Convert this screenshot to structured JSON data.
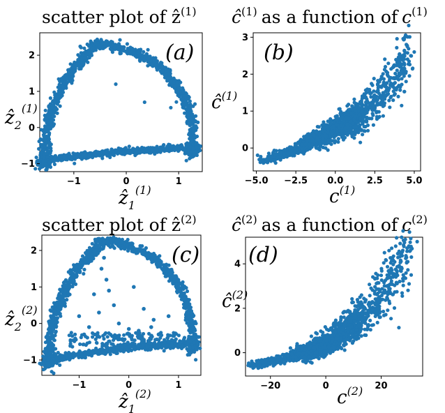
{
  "point_color": "#1f77b4",
  "chart_data": [
    {
      "type": "scatter",
      "panel": "a",
      "title": "scatter plot of ẑ",
      "title_sup": "(1)",
      "xlabel": "ẑ",
      "xlabel_sub": "1",
      "xlabel_sup": "(1)",
      "ylabel": "ẑ",
      "ylabel_sub": "2",
      "ylabel_sup": "(1)",
      "xlim": [
        -1.65,
        1.45
      ],
      "ylim": [
        -1.22,
        2.62
      ],
      "xticks": [
        -1,
        0,
        1
      ],
      "xtick_labels": [
        "−1",
        "0",
        "1"
      ],
      "yticks": [
        -1,
        0,
        1,
        2
      ],
      "ytick_labels": [
        "−1",
        "0",
        "1",
        "2"
      ],
      "grid": false,
      "shape": "closed loop along a triangular arc: bottom edge y≈-0.9 to -0.6 from x≈-1.55 to 1.3, left edge rising to apex (-0.6, 2.3), right edge descending to (1.3, -0.5)",
      "vertices": [
        [
          -1.55,
          -0.95
        ],
        [
          -0.55,
          2.3
        ],
        [
          1.3,
          -0.45
        ]
      ],
      "sparse_points": [
        [
          0.35,
          0.7
        ],
        [
          -0.2,
          1.2
        ],
        [
          0.85,
          0.55
        ]
      ]
    },
    {
      "type": "scatter",
      "panel": "b",
      "title": "ĉ",
      "title_sup": "(1)",
      "title_mid": "as a function of",
      "title_c": "c",
      "title_c_sup": "(1)",
      "xlabel": "c",
      "xlabel_sup": "(1)",
      "ylabel": "ĉ",
      "ylabel_sup": "(1)",
      "xlim": [
        -5.2,
        5.4
      ],
      "ylim": [
        -0.62,
        3.12
      ],
      "xticks": [
        -5.0,
        -2.5,
        0.0,
        2.5,
        5.0
      ],
      "xtick_labels": [
        "−5.0",
        "−2.5",
        "0.0",
        "2.5",
        "5.0"
      ],
      "yticks": [
        0,
        1,
        2,
        3
      ],
      "ytick_labels": [
        "0",
        "1",
        "2",
        "3"
      ],
      "grid": false,
      "curve": [
        [
          -4.6,
          -0.35
        ],
        [
          -2.5,
          -0.05
        ],
        [
          0.0,
          0.5
        ],
        [
          1.5,
          0.9
        ],
        [
          2.5,
          1.25
        ],
        [
          3.5,
          1.8
        ],
        [
          4.6,
          2.45
        ]
      ],
      "outliers": [
        [
          4.4,
          3.0
        ],
        [
          5.0,
          2.6
        ],
        [
          4.5,
          2.8
        ]
      ]
    },
    {
      "type": "scatter",
      "panel": "c",
      "title": "scatter plot of ẑ",
      "title_sup": "(2)",
      "xlabel": "ẑ",
      "xlabel_sub": "1",
      "xlabel_sup": "(2)",
      "ylabel": "ẑ",
      "ylabel_sub": "2",
      "ylabel_sup": "(2)",
      "xlim": [
        -1.75,
        1.45
      ],
      "ylim": [
        -1.42,
        2.42
      ],
      "xticks": [
        -1,
        0,
        1
      ],
      "xtick_labels": [
        "−1",
        "0",
        "1"
      ],
      "yticks": [
        -1,
        0,
        1,
        2
      ],
      "ytick_labels": [
        "−1",
        "0",
        "1",
        "2"
      ],
      "grid": false,
      "shape": "closed loop along a triangular arc with points scattered inside: bottom edge y≈-1.0 to -0.7 from x≈-1.6 to 1.3, apex (-0.5, 2.25), right corner (1.3, -0.5)",
      "vertices": [
        [
          -1.6,
          -1.05
        ],
        [
          -0.5,
          2.25
        ],
        [
          1.3,
          -0.45
        ]
      ],
      "inner_points": [
        [
          -0.5,
          1.8
        ],
        [
          -0.45,
          1.2
        ],
        [
          -0.6,
          0.3
        ],
        [
          -0.2,
          0.0
        ],
        [
          0.2,
          -0.2
        ],
        [
          -0.9,
          -0.3
        ],
        [
          0.5,
          0.1
        ],
        [
          -0.3,
          0.5
        ],
        [
          0.1,
          1.0
        ],
        [
          0.6,
          -0.3
        ],
        [
          -0.7,
          0.8
        ],
        [
          0.3,
          0.4
        ],
        [
          -1.0,
          0.2
        ],
        [
          0.8,
          0.2
        ],
        [
          -0.2,
          -0.4
        ],
        [
          -0.55,
          1.5
        ],
        [
          0.0,
          -0.15
        ],
        [
          -0.4,
          0.9
        ],
        [
          0.45,
          -0.1
        ],
        [
          -0.8,
          -0.1
        ]
      ]
    },
    {
      "type": "scatter",
      "panel": "d",
      "title": "ĉ",
      "title_sup": "(2)",
      "title_mid": "as a function of",
      "title_c": "c",
      "title_c_sup": "(2)",
      "xlabel": "c",
      "xlabel_sup": "(2)",
      "ylabel": "ĉ",
      "ylabel_sup": "(2)",
      "xlim": [
        -29,
        35
      ],
      "ylim": [
        -1.05,
        5.2
      ],
      "xticks": [
        -20,
        0,
        20
      ],
      "xtick_labels": [
        "−20",
        "0",
        "20"
      ],
      "yticks": [
        0,
        2,
        4
      ],
      "ytick_labels": [
        "0",
        "2",
        "4"
      ],
      "grid": false,
      "curve": [
        [
          -27,
          -0.6
        ],
        [
          -15,
          -0.25
        ],
        [
          -5,
          0.15
        ],
        [
          0,
          0.4
        ],
        [
          5,
          0.8
        ],
        [
          10,
          1.3
        ],
        [
          15,
          1.9
        ],
        [
          20,
          2.6
        ],
        [
          25,
          3.6
        ],
        [
          30,
          4.6
        ]
      ],
      "outliers": [
        [
          33,
          5.0
        ],
        [
          28,
          3.5
        ],
        [
          22,
          3.0
        ],
        [
          30,
          4.8
        ]
      ]
    }
  ]
}
